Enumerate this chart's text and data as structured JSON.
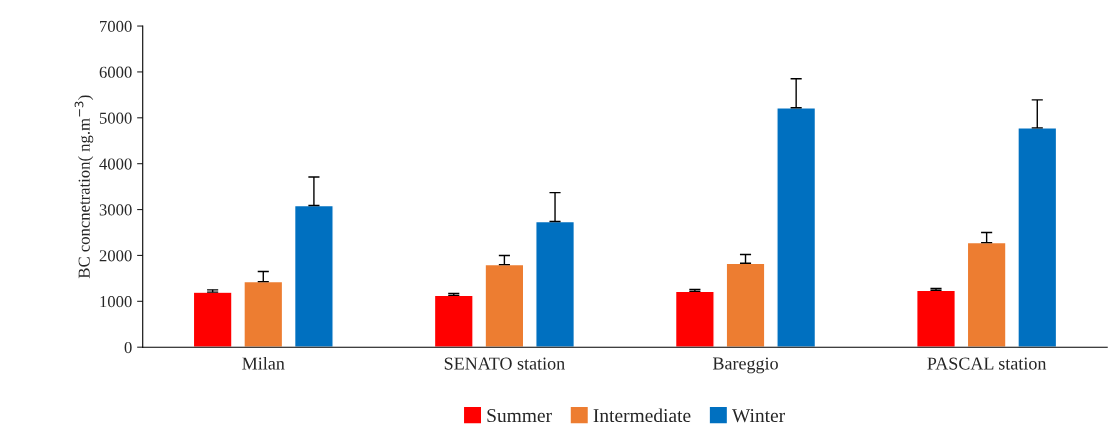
{
  "chart_data": {
    "type": "bar",
    "ylabel": "BC concnetration( ng.m$^{−3}$)",
    "categories": [
      "Milan",
      "SENATO station",
      "Bareggio",
      "PASCAL station"
    ],
    "series": [
      {
        "name": "Summer",
        "color": "#ff0000",
        "values": [
          1200,
          1130,
          1220,
          1240
        ],
        "errors": [
          [
            1200,
            1250
          ],
          [
            1130,
            1170
          ],
          [
            1220,
            1260
          ],
          [
            1240,
            1280
          ]
        ]
      },
      {
        "name": "Intermediate",
        "color": "#ed7d31",
        "values": [
          1430,
          1800,
          1830,
          2280
        ],
        "errors": [
          [
            1430,
            1650
          ],
          [
            1800,
            2000
          ],
          [
            1830,
            2020
          ],
          [
            2280,
            2500
          ]
        ]
      },
      {
        "name": "Winter",
        "color": "#0070c0",
        "values": [
          3090,
          2740,
          5220,
          4780
        ],
        "errors": [
          [
            3090,
            3710
          ],
          [
            2740,
            3370
          ],
          [
            5220,
            5850
          ],
          [
            4780,
            5390
          ]
        ]
      }
    ],
    "ylim": [
      0,
      7000
    ],
    "yticks": [
      0,
      1000,
      2000,
      3000,
      4000,
      5000,
      6000,
      7000
    ],
    "grid": false,
    "legend": "bottom"
  }
}
